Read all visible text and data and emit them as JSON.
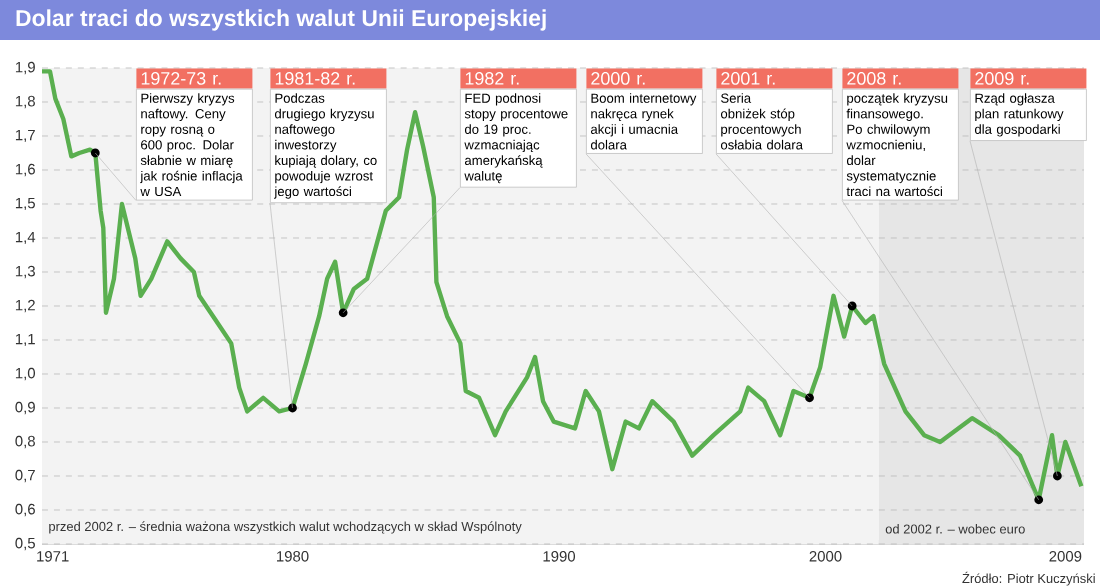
{
  "chart_data": {
    "type": "line",
    "title": "Dolar traci do wszystkich walut Unii Europejskiej",
    "x": [
      1970.6,
      1970.9,
      1971.1,
      1971.4,
      1971.7,
      1972.0,
      1972.4,
      1972.6,
      1972.8,
      1972.9,
      1973.0,
      1973.3,
      1973.6,
      1974.1,
      1974.3,
      1974.7,
      1975.3,
      1975.8,
      1976.3,
      1976.5,
      1977.1,
      1977.7,
      1978.0,
      1978.3,
      1978.9,
      1979.5,
      1980.0,
      1980.5,
      1981.0,
      1981.3,
      1981.6,
      1981.9,
      1982.3,
      1982.8,
      1983.5,
      1984.0,
      1984.3,
      1984.6,
      1984.9,
      1985.3,
      1985.4,
      1985.8,
      1986.3,
      1986.5,
      1987.0,
      1987.6,
      1988.0,
      1988.8,
      1989.1,
      1989.4,
      1989.8,
      1990.6,
      1991.0,
      1991.5,
      1992.0,
      1992.5,
      1993.0,
      1993.5,
      1994.3,
      1995.0,
      1995.8,
      1996.8,
      1997.1,
      1997.7,
      1998.3,
      1998.8,
      1999.4,
      1999.8,
      2000.3,
      2000.7,
      2001.0,
      2001.5,
      2001.8,
      2002.2,
      2003.0,
      2003.7,
      2004.3,
      2005.5,
      2006.5,
      2007.3,
      2008.0,
      2008.5,
      2008.7,
      2009.0,
      2009.6
    ],
    "series": [
      {
        "color": "#5aaf4f",
        "values": [
          1.89,
          1.89,
          1.81,
          1.75,
          1.64,
          1.65,
          1.66,
          1.65,
          1.48,
          1.43,
          1.18,
          1.28,
          1.5,
          1.34,
          1.23,
          1.28,
          1.39,
          1.34,
          1.3,
          1.23,
          1.16,
          1.09,
          0.96,
          0.89,
          0.93,
          0.89,
          0.9,
          1.03,
          1.17,
          1.28,
          1.33,
          1.18,
          1.25,
          1.28,
          1.48,
          1.52,
          1.66,
          1.77,
          1.67,
          1.52,
          1.27,
          1.17,
          1.09,
          0.95,
          0.93,
          0.82,
          0.89,
          0.99,
          1.05,
          0.92,
          0.86,
          0.84,
          0.95,
          0.89,
          0.72,
          0.86,
          0.84,
          0.92,
          0.86,
          0.76,
          0.82,
          0.89,
          0.96,
          0.92,
          0.82,
          0.95,
          0.93,
          1.02,
          1.23,
          1.11,
          1.2,
          1.15,
          1.17,
          1.03,
          0.89,
          0.82,
          0.8,
          0.87,
          0.82,
          0.76,
          0.63,
          0.82,
          0.7,
          0.8,
          0.67
        ]
      }
    ],
    "xlim": [
      1970.6,
      2009.7
    ],
    "xticks": [
      1971,
      1980,
      1990,
      2000,
      2009
    ],
    "ylim": [
      0.5,
      1.9
    ],
    "yticks": [
      {
        "value": 0.5,
        "label": "0,5"
      },
      {
        "value": 0.6,
        "label": "0,6"
      },
      {
        "value": 0.7,
        "label": "0,7"
      },
      {
        "value": 0.8,
        "label": "0,8"
      },
      {
        "value": 0.9,
        "label": "0,9"
      },
      {
        "value": 1.0,
        "label": "1,0"
      },
      {
        "value": 1.1,
        "label": "1,1"
      },
      {
        "value": 1.2,
        "label": "1,2"
      },
      {
        "value": 1.3,
        "label": "1,3"
      },
      {
        "value": 1.4,
        "label": "1,4"
      },
      {
        "value": 1.5,
        "label": "1,5"
      },
      {
        "value": 1.6,
        "label": "1,6"
      },
      {
        "value": 1.7,
        "label": "1,7"
      },
      {
        "value": 1.8,
        "label": "1,8"
      },
      {
        "value": 1.9,
        "label": "1,9"
      }
    ],
    "grid": "y",
    "bands": [
      {
        "axis": "x",
        "from": 1970.6,
        "to": 2002,
        "label": "przed 2002 r. – średnia ważona wszystkich walut wchodzących w skład Wspólnoty",
        "color": "#f3f3f3"
      },
      {
        "axis": "x",
        "from": 2002,
        "to": 2009.7,
        "label": "od 2002 r. – wobec euro",
        "color": "#e6e6e6"
      }
    ],
    "annotations": [
      "1972-73 r.",
      {
        "text": "Pierwszy kryzys naftowy. Ceny ropy rosną o 600 proc. Dolar słabnie w miarę jak rośnie inflacja w USA",
        "x": 1972.6,
        "y": 1.65
      },
      "1981-82 r.",
      {
        "text": "Podczas drugiego kryzysu naftowego inwestorzy kupiają dolary, co powoduje wzrost jego wartości",
        "x": 1980.0,
        "y": 0.9
      },
      "1982 r.",
      {
        "text": "FED podnosi stopy procentowe do 19 proc. wzmacniając amerykańską walutę",
        "x": 1981.9,
        "y": 1.18
      },
      "2000 r.",
      {
        "text": "Boom internetowy nakręca rynek akcji i umacnia dolara",
        "x": 1999.4,
        "y": 0.93
      },
      "2001 r.",
      {
        "text": "Seria obniżek stóp procentowych osłabia dolara",
        "x": 2001.0,
        "y": 1.2
      },
      "2008 r.",
      {
        "text": "początek kryzysu finansowego. Po chwilowym wzmocnieniu, dolar systematycznie traci na wartości",
        "x": 2008.0,
        "y": 0.63
      },
      "2009 r.",
      {
        "text": "Rząd ogłasza plan ratunkowy dla gospodarki",
        "x": 2008.7,
        "y": 0.7
      },
      "Źródło: Piotr Kuczyński"
    ]
  }
}
